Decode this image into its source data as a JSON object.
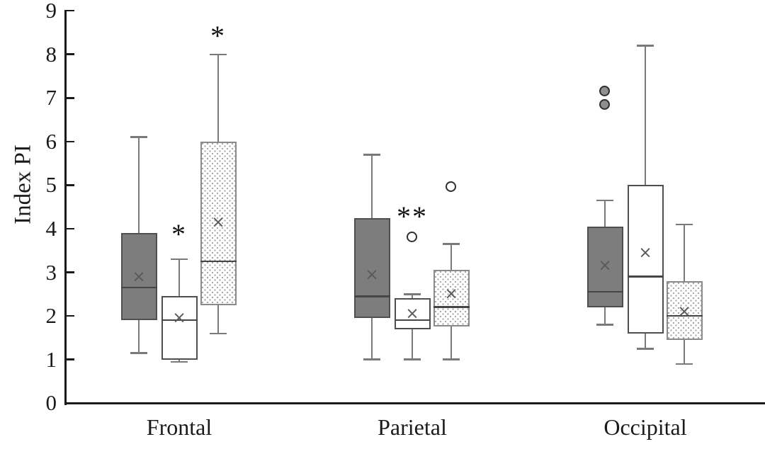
{
  "chart_data": {
    "type": "box",
    "title": "",
    "ylabel": "Index PI",
    "xlabel": "",
    "ylim": [
      0,
      9
    ],
    "yticks": [
      0,
      1,
      2,
      3,
      4,
      5,
      6,
      7,
      8,
      9
    ],
    "grid": false,
    "legend": "none",
    "mean_marker_glyph": "×",
    "categories": [
      "Frontal",
      "Parietal",
      "Occipital"
    ],
    "series": [
      {
        "name": "dark-gray",
        "style": "solid-dark",
        "boxes": [
          {
            "whisker_low": 1.15,
            "q1": 1.9,
            "median": 2.65,
            "mean": 2.9,
            "q3": 3.9,
            "whisker_high": 6.1,
            "outliers": [],
            "annotation": null
          },
          {
            "whisker_low": 1.0,
            "q1": 1.95,
            "median": 2.45,
            "mean": 2.95,
            "q3": 4.25,
            "whisker_high": 5.7,
            "outliers": [],
            "annotation": null
          },
          {
            "whisker_low": 1.8,
            "q1": 2.2,
            "median": 2.55,
            "mean": 3.15,
            "q3": 4.05,
            "whisker_high": 4.65,
            "outliers": [
              {
                "value": 6.85,
                "filled": true
              },
              {
                "value": 7.15,
                "filled": true
              }
            ],
            "annotation": null
          }
        ]
      },
      {
        "name": "white",
        "style": "white",
        "boxes": [
          {
            "whisker_low": 0.95,
            "q1": 1.0,
            "median": 1.9,
            "mean": 1.95,
            "q3": 2.45,
            "whisker_high": 3.3,
            "outliers": [],
            "annotation": {
              "text": "*",
              "at": 3.95
            }
          },
          {
            "whisker_low": 1.0,
            "q1": 1.7,
            "median": 1.9,
            "mean": 2.05,
            "q3": 2.4,
            "whisker_high": 2.5,
            "outliers": [
              {
                "value": 3.8,
                "filled": false
              }
            ],
            "annotation": {
              "text": "**",
              "at": 4.35
            }
          },
          {
            "whisker_low": 1.25,
            "q1": 1.6,
            "median": 2.9,
            "mean": 3.45,
            "q3": 5.0,
            "whisker_high": 8.2,
            "outliers": [],
            "annotation": null
          }
        ]
      },
      {
        "name": "dotted",
        "style": "dotted",
        "boxes": [
          {
            "whisker_low": 1.6,
            "q1": 2.25,
            "median": 3.25,
            "mean": 4.15,
            "q3": 6.0,
            "whisker_high": 8.0,
            "outliers": [],
            "annotation": {
              "text": "*",
              "at": 8.5
            }
          },
          {
            "whisker_low": 1.0,
            "q1": 1.75,
            "median": 2.2,
            "mean": 2.5,
            "q3": 3.05,
            "whisker_high": 3.65,
            "outliers": [
              {
                "value": 4.95,
                "filled": false
              }
            ],
            "annotation": null
          },
          {
            "whisker_low": 0.9,
            "q1": 1.45,
            "median": 2.0,
            "mean": 2.1,
            "q3": 2.8,
            "whisker_high": 4.1,
            "outliers": [],
            "annotation": null
          }
        ]
      }
    ]
  },
  "colors": {
    "axis": "#1a1a1a",
    "text": "#1a1a1a",
    "box_fill_dark": "#7d7d7d",
    "box_border": "#4f4f4f",
    "dotted_border": "#8a8a8a",
    "dot_color": "#a6a6a6",
    "whisker": "#7a7a7a",
    "median": "#454545",
    "mean": "#5a5a5a",
    "outlier_stroke": "#2e2e2e",
    "outlier_fill": "#8f8f8f",
    "annotation": "#111111"
  }
}
